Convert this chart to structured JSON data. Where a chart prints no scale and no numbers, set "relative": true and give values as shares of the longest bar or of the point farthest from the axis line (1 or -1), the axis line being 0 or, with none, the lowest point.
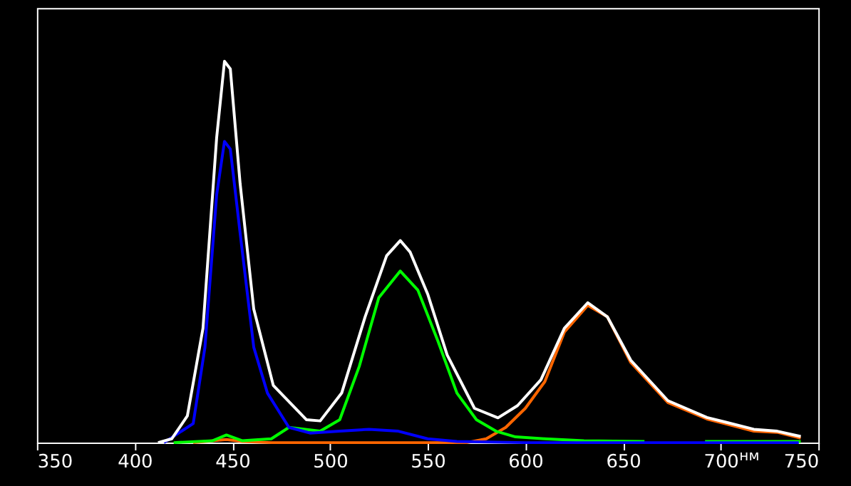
{
  "chart_data": {
    "type": "line",
    "relative": true,
    "xlabel": "нм",
    "xlim": [
      350,
      750
    ],
    "xticks": [
      350,
      400,
      450,
      500,
      550,
      600,
      650,
      700,
      750
    ],
    "grid": false,
    "legend": false,
    "line_style": "solid",
    "marker": "none",
    "series": [
      {
        "color": "#ff6600",
        "x": [
          430,
          440,
          447,
          455,
          470,
          570,
          580,
          590,
          600,
          610,
          620,
          632,
          642,
          654,
          673,
          693,
          717,
          729,
          741
        ],
        "values": [
          0,
          0.005,
          0.008,
          0.003,
          0,
          0,
          0.01,
          0.04,
          0.09,
          0.16,
          0.29,
          0.36,
          0.33,
          0.21,
          0.105,
          0.062,
          0.03,
          0.027,
          0.012
        ]
      },
      {
        "color": "#00ff00",
        "x": [
          420,
          440,
          447,
          455,
          470,
          479,
          495,
          505,
          515,
          525,
          536,
          545,
          555,
          565,
          575,
          585,
          595,
          610,
          630,
          661,
          675,
          692,
          741
        ],
        "values": [
          0,
          0.005,
          0.02,
          0.005,
          0.01,
          0.04,
          0.03,
          0.06,
          0.2,
          0.38,
          0.45,
          0.4,
          0.27,
          0.13,
          0.06,
          0.03,
          0.015,
          0.01,
          0.005,
          0.003,
          null,
          0.003,
          0.003
        ]
      },
      {
        "color": "#0000ff",
        "x": [
          415,
          430,
          436,
          442,
          446,
          449,
          454,
          461,
          468,
          479,
          490,
          505,
          520,
          535,
          550,
          565,
          600,
          740
        ],
        "values": [
          0,
          0.05,
          0.25,
          0.65,
          0.79,
          0.77,
          0.55,
          0.25,
          0.13,
          0.04,
          0.025,
          0.03,
          0.035,
          0.03,
          0.01,
          0.003,
          0,
          0
        ]
      },
      {
        "color": "#ffffff",
        "x": [
          412,
          419,
          427,
          435,
          442,
          446,
          449,
          454,
          461,
          471,
          488,
          495,
          506,
          518,
          529,
          536,
          541,
          550,
          560,
          574,
          586,
          596,
          608,
          620,
          632,
          642,
          654,
          673,
          693,
          717,
          729,
          741
        ],
        "values": [
          0,
          0.01,
          0.07,
          0.3,
          0.8,
          1,
          0.98,
          0.68,
          0.35,
          0.15,
          0.06,
          0.057,
          0.13,
          0.33,
          0.49,
          0.53,
          0.5,
          0.39,
          0.23,
          0.09,
          0.065,
          0.097,
          0.165,
          0.3,
          0.367,
          0.33,
          0.216,
          0.11,
          0.066,
          0.035,
          0.03,
          0.016
        ]
      }
    ]
  }
}
